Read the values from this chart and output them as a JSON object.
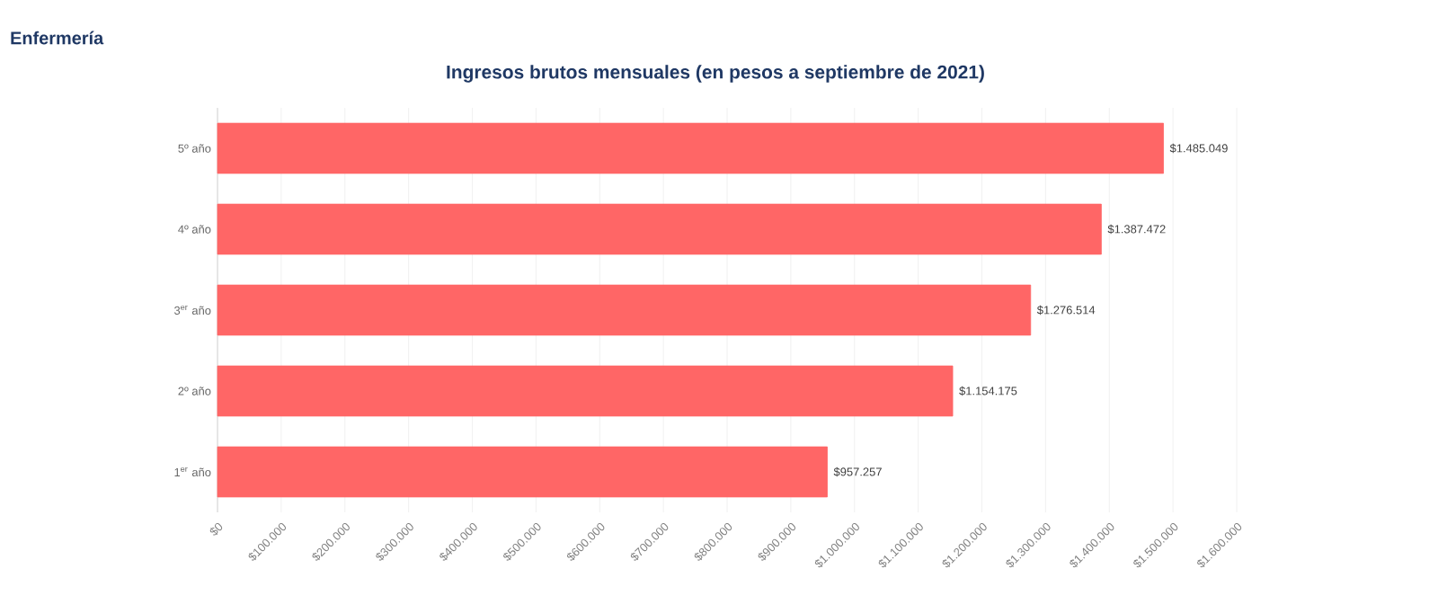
{
  "chart_data": {
    "type": "bar",
    "orientation": "horizontal",
    "title": "Ingresos brutos mensuales (en pesos a septiembre de 2021)",
    "annotations": [
      "Enfermería"
    ],
    "categories": [
      "5º año",
      "4º año",
      "3$^{er}$ año",
      "2º año",
      "1$^{er}$ año"
    ],
    "values": [
      1485049,
      1387472,
      1276514,
      1154175,
      957257
    ],
    "value_labels": [
      "$1.485.049",
      "$1.387.472",
      "$1.276.514",
      "$1.154.175",
      "$957.257"
    ],
    "color": "#ff6666",
    "xlim": [
      0,
      1600000
    ],
    "xticks": [
      {
        "value": 0,
        "label": "$0"
      },
      {
        "value": 100000,
        "label": "$100.000"
      },
      {
        "value": 200000,
        "label": "$200.000"
      },
      {
        "value": 300000,
        "label": "$300.000"
      },
      {
        "value": 400000,
        "label": "$400.000"
      },
      {
        "value": 500000,
        "label": "$500.000"
      },
      {
        "value": 600000,
        "label": "$600.000"
      },
      {
        "value": 700000,
        "label": "$700.000"
      },
      {
        "value": 800000,
        "label": "$800.000"
      },
      {
        "value": 900000,
        "label": "$900.000"
      },
      {
        "value": 1000000,
        "label": "$1.000.000"
      },
      {
        "value": 1100000,
        "label": "$1.100.000"
      },
      {
        "value": 1200000,
        "label": "$1.200.000"
      },
      {
        "value": 1300000,
        "label": "$1.300.000"
      },
      {
        "value": 1400000,
        "label": "$1.400.000"
      },
      {
        "value": 1500000,
        "label": "$1.500.000"
      },
      {
        "value": 1600000,
        "label": "$1.600.000"
      }
    ],
    "grid": "x"
  }
}
